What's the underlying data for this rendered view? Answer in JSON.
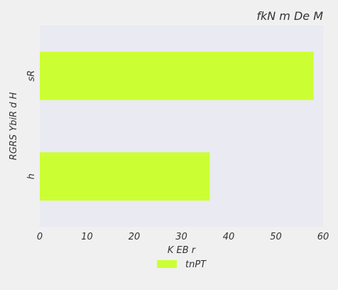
{
  "chart_data": {
    "type": "bar",
    "orientation": "horizontal",
    "title": "fkN m  De M",
    "xlabel": "K EB r",
    "ylabel": "RGRS YbiR d H",
    "categories": [
      "sR",
      "h"
    ],
    "series": [
      {
        "name": "tnPT",
        "values": [
          58,
          36
        ],
        "color": "#ccff33"
      }
    ],
    "xlim": [
      0,
      60
    ],
    "x_ticks": [
      "0",
      "10",
      "20",
      "30",
      "40",
      "50",
      "60"
    ],
    "grid": false,
    "legend_position": "bottom-center",
    "colors": {
      "plot_background": "#eaeaf2",
      "figure_background": "#f0f0f0",
      "text": "#333333"
    }
  }
}
